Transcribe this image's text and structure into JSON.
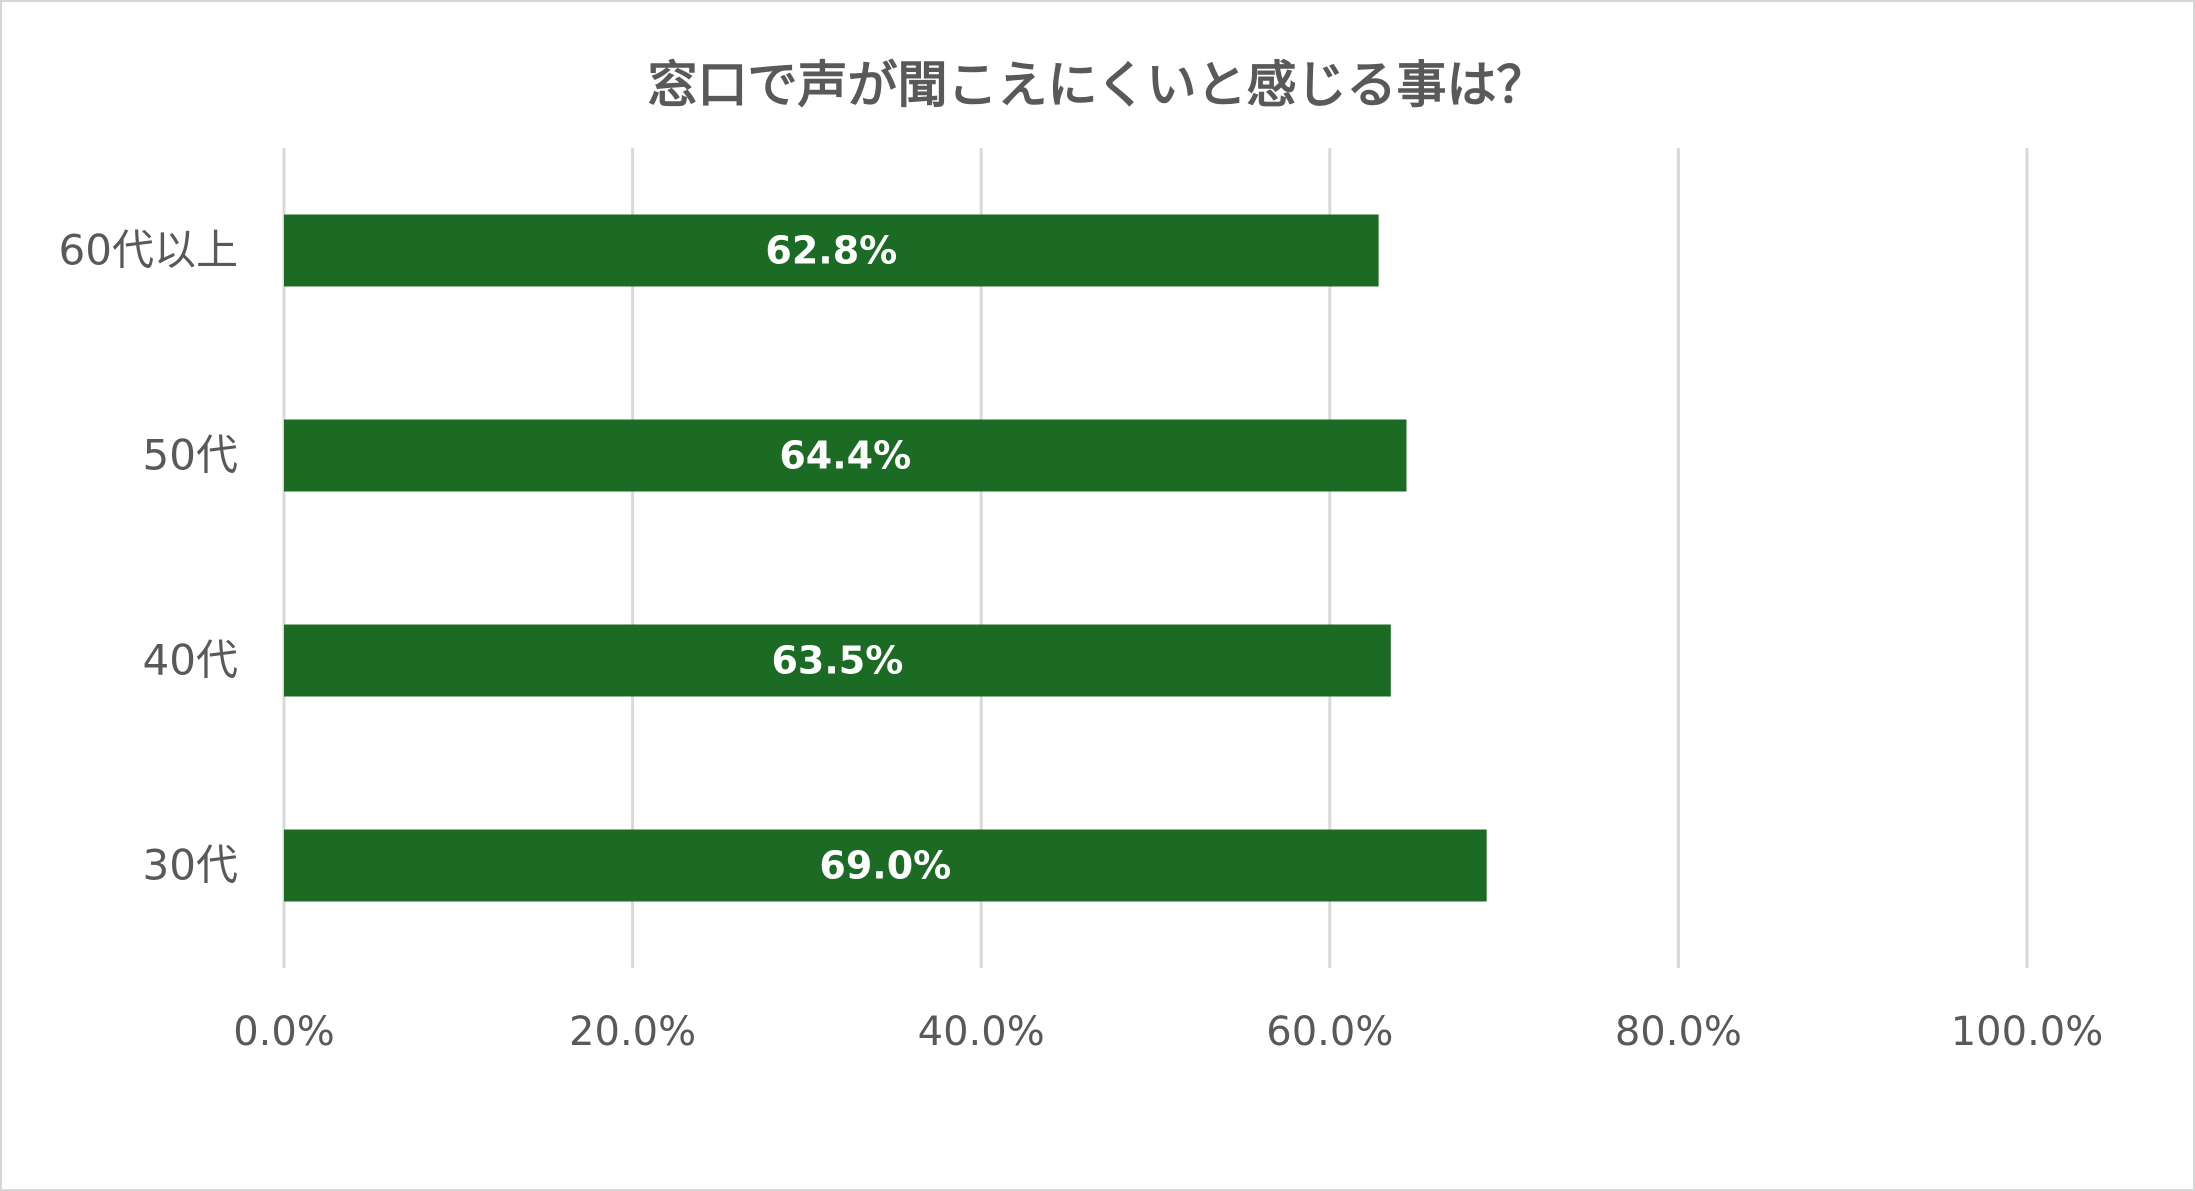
{
  "chart_data": {
    "type": "bar",
    "orientation": "horizontal",
    "title": "窓口で声が聞こえにくいと感じる事は？",
    "categories": [
      "60代以上",
      "50代",
      "40代",
      "30代"
    ],
    "values": [
      62.8,
      64.4,
      63.5,
      69.0
    ],
    "data_labels": [
      "62.8%",
      "64.4%",
      "63.5%",
      "69.0%"
    ],
    "xlim": [
      0,
      100
    ],
    "x_ticks": [
      0,
      20,
      40,
      60,
      80,
      100
    ],
    "x_tick_labels": [
      "0.0%",
      "20.0%",
      "40.0%",
      "60.0%",
      "80.0%",
      "100.0%"
    ],
    "grid": "vertical",
    "legend": "none",
    "bar_color": "#1b6b24"
  }
}
